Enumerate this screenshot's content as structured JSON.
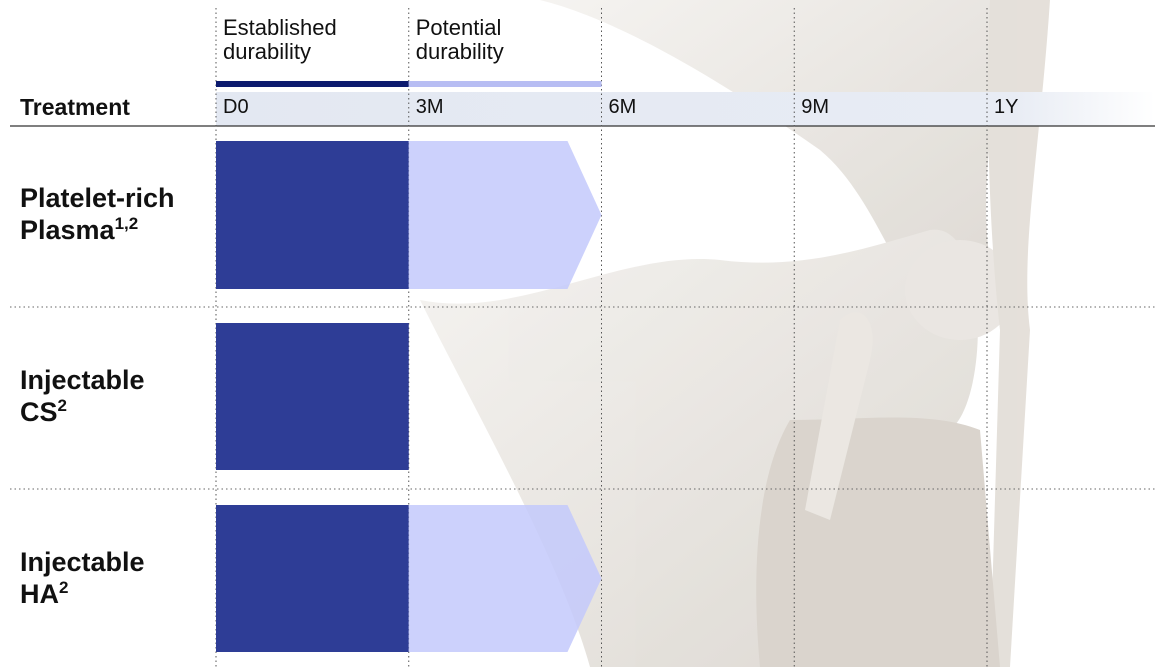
{
  "chart_data": {
    "type": "bar",
    "orientation": "horizontal",
    "stacked": true,
    "y_label": "Treatment",
    "categories": [
      "Platelet-rich Plasma",
      "Injectable CS",
      "Injectable HA"
    ],
    "category_refs": [
      "1,2",
      "2",
      "2"
    ],
    "series": [
      {
        "name": "Established durability",
        "color": "#2e3d96",
        "values": [
          3,
          3,
          3
        ]
      },
      {
        "name": "Potential durability",
        "color": "#c3c9fb",
        "values": [
          3,
          null,
          3
        ]
      }
    ],
    "xlim": [
      0,
      12
    ],
    "xticks": [
      {
        "value": 0,
        "label": "D0"
      },
      {
        "value": 3,
        "label": "3M"
      },
      {
        "value": 6,
        "label": "6M"
      },
      {
        "value": 9,
        "label": "9M"
      },
      {
        "value": 12,
        "label": "1Y"
      }
    ],
    "grid": true
  }
}
